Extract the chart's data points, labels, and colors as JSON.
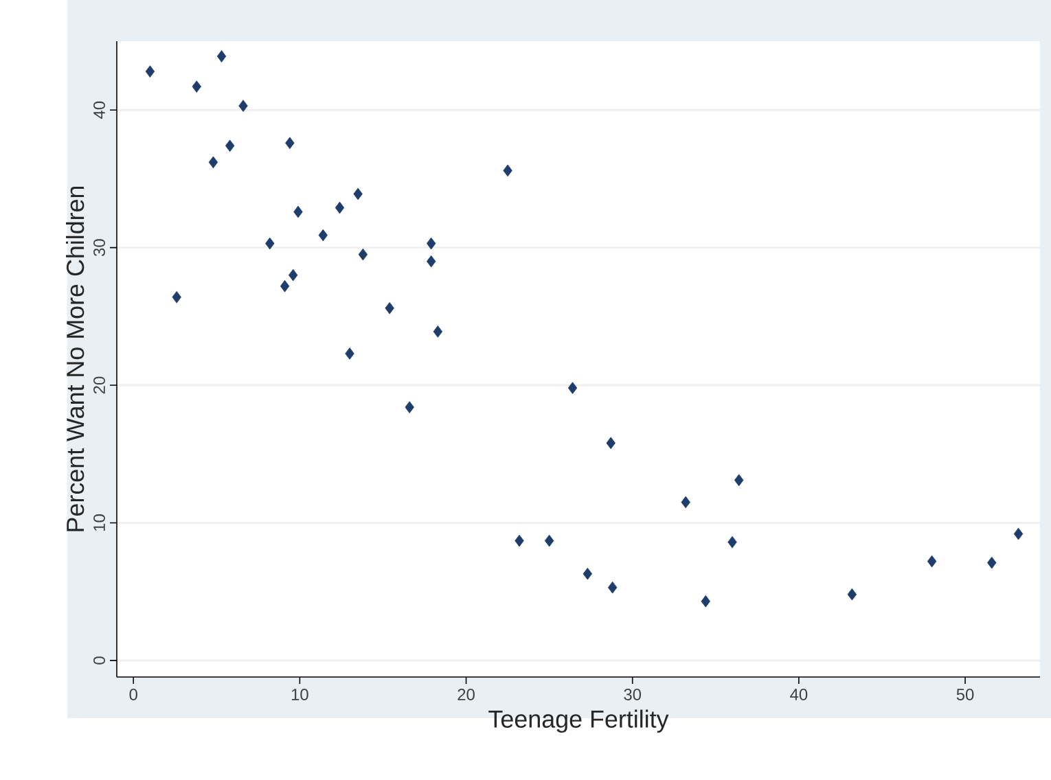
{
  "chart_data": {
    "type": "scatter",
    "xlabel": "Teenage Fertility",
    "ylabel": "Percent Want No More Children",
    "xlim": [
      -1,
      54.5
    ],
    "ylim": [
      -1.2,
      45
    ],
    "xticks": [
      0,
      10,
      20,
      30,
      40,
      50
    ],
    "yticks": [
      0,
      10,
      20,
      30,
      40
    ],
    "grid": "y",
    "marker": "diamond",
    "series": [
      {
        "color": "#1f3d6b",
        "x": [
          1.0,
          5.3,
          3.8,
          6.6,
          5.8,
          4.8,
          9.4,
          22.5,
          13.5,
          9.9,
          12.4,
          11.4,
          8.2,
          13.8,
          17.9,
          17.9,
          9.6,
          9.1,
          2.6,
          15.4,
          18.3,
          13.0,
          16.6,
          23.2,
          25.0,
          26.4,
          27.3,
          28.7,
          28.8,
          33.2,
          34.4,
          36.0,
          36.4,
          43.2,
          48.0,
          51.6,
          53.2
        ],
        "values": [
          42.8,
          43.9,
          41.7,
          40.3,
          37.4,
          36.2,
          37.6,
          35.6,
          33.9,
          32.6,
          32.9,
          30.9,
          30.3,
          29.5,
          30.3,
          29.0,
          28.0,
          27.2,
          26.4,
          25.6,
          23.9,
          22.3,
          18.4,
          8.7,
          8.7,
          19.8,
          6.3,
          15.8,
          5.3,
          11.5,
          4.3,
          8.6,
          13.1,
          4.8,
          7.2,
          7.1,
          9.2
        ]
      }
    ]
  }
}
